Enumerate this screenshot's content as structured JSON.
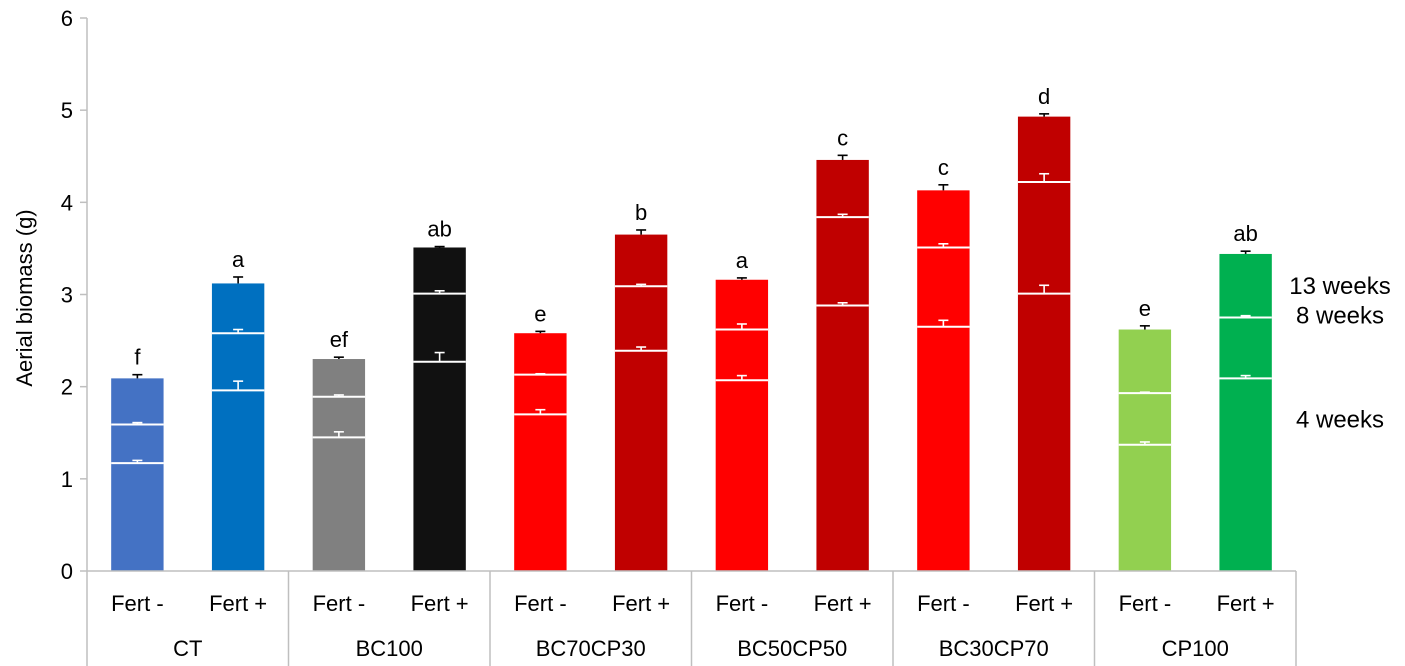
{
  "chart_data": {
    "type": "bar",
    "stacked": true,
    "ylabel": "Aerial biomass (g)",
    "xlabel": "",
    "ylim": [
      0,
      6
    ],
    "yticks": [
      "0",
      "1",
      "2",
      "3",
      "4",
      "5",
      "6"
    ],
    "grid": false,
    "groups": [
      "CT",
      "BC100",
      "BC70CP30",
      "BC50CP50",
      "BC30CP70",
      "CP100"
    ],
    "subgroups": [
      "Fert -",
      "Fert +"
    ],
    "bars": [
      {
        "group": "CT",
        "sub": "Fert -",
        "color": "#4472c4",
        "w4": 1.17,
        "w8": 1.59,
        "w13": 2.09,
        "e4": 0.03,
        "e8": 0.02,
        "e13": 0.04,
        "letter": "f"
      },
      {
        "group": "CT",
        "sub": "Fert +",
        "color": "#0070c0",
        "w4": 1.96,
        "w8": 2.58,
        "w13": 3.12,
        "e4": 0.1,
        "e8": 0.04,
        "e13": 0.07,
        "letter": "a"
      },
      {
        "group": "BC100",
        "sub": "Fert -",
        "color": "#808080",
        "w4": 1.45,
        "w8": 1.89,
        "w13": 2.3,
        "e4": 0.06,
        "e8": 0.02,
        "e13": 0.02,
        "letter": "ef"
      },
      {
        "group": "BC100",
        "sub": "Fert +",
        "color": "#111111",
        "w4": 2.27,
        "w8": 3.01,
        "w13": 3.51,
        "e4": 0.1,
        "e8": 0.03,
        "e13": 0.01,
        "letter": "ab"
      },
      {
        "group": "BC70CP30",
        "sub": "Fert -",
        "color": "#ff0000",
        "w4": 1.7,
        "w8": 2.13,
        "w13": 2.58,
        "e4": 0.05,
        "e8": 0.01,
        "e13": 0.02,
        "letter": "e"
      },
      {
        "group": "BC70CP30",
        "sub": "Fert +",
        "color": "#c00000",
        "w4": 2.39,
        "w8": 3.09,
        "w13": 3.65,
        "e4": 0.04,
        "e8": 0.02,
        "e13": 0.05,
        "letter": "b"
      },
      {
        "group": "BC50CP50",
        "sub": "Fert -",
        "color": "#ff0000",
        "w4": 2.07,
        "w8": 2.62,
        "w13": 3.16,
        "e4": 0.05,
        "e8": 0.06,
        "e13": 0.02,
        "letter": "a"
      },
      {
        "group": "BC50CP50",
        "sub": "Fert +",
        "color": "#c00000",
        "w4": 2.88,
        "w8": 3.84,
        "w13": 4.46,
        "e4": 0.03,
        "e8": 0.03,
        "e13": 0.05,
        "letter": "c"
      },
      {
        "group": "BC30CP70",
        "sub": "Fert -",
        "color": "#ff0000",
        "w4": 2.65,
        "w8": 3.51,
        "w13": 4.13,
        "e4": 0.07,
        "e8": 0.04,
        "e13": 0.06,
        "letter": "c"
      },
      {
        "group": "BC30CP70",
        "sub": "Fert +",
        "color": "#c00000",
        "w4": 3.01,
        "w8": 4.22,
        "w13": 4.93,
        "e4": 0.09,
        "e8": 0.09,
        "e13": 0.03,
        "letter": "d"
      },
      {
        "group": "CP100",
        "sub": "Fert -",
        "color": "#92d050",
        "w4": 1.37,
        "w8": 1.93,
        "w13": 2.62,
        "e4": 0.03,
        "e8": 0.01,
        "e13": 0.04,
        "letter": "e"
      },
      {
        "group": "CP100",
        "sub": "Fert +",
        "color": "#00b050",
        "w4": 2.09,
        "w8": 2.75,
        "w13": 3.44,
        "e4": 0.03,
        "e8": 0.02,
        "e13": 0.03,
        "letter": "ab"
      }
    ],
    "annotations": [
      "13 weeks",
      "8 weeks",
      "4 weeks"
    ]
  }
}
